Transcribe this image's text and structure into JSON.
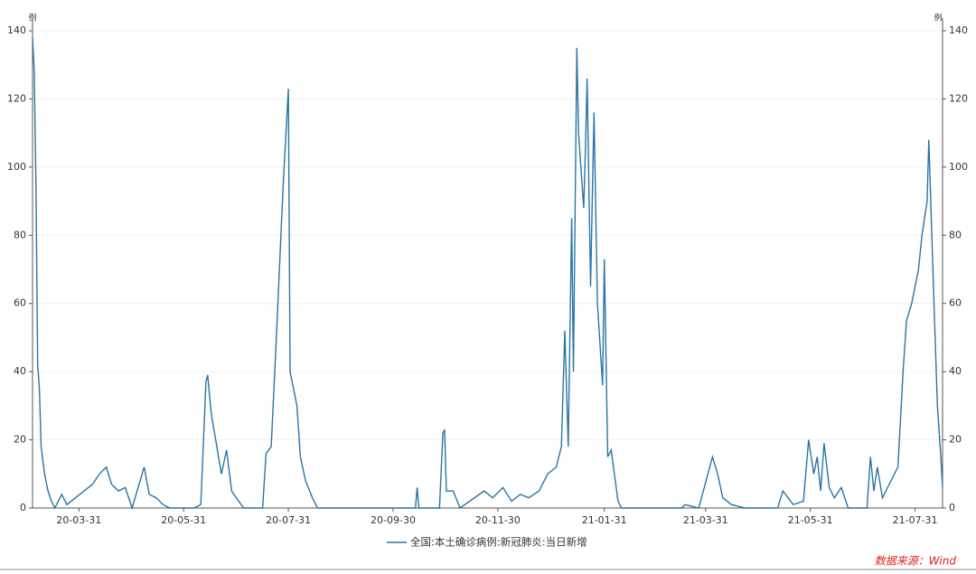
{
  "chart_data": {
    "type": "line",
    "y_unit": "例",
    "y2_unit": "例",
    "x": [
      "20-03-04",
      "20-03-05",
      "20-03-06",
      "20-03-07",
      "20-03-08",
      "20-03-09",
      "20-03-11",
      "20-03-13",
      "20-03-15",
      "20-03-17",
      "20-03-21",
      "20-03-24",
      "20-03-29",
      "20-04-03",
      "20-04-08",
      "20-04-12",
      "20-04-16",
      "20-04-19",
      "20-04-23",
      "20-04-27",
      "20-05-01",
      "20-05-08",
      "20-05-11",
      "20-05-15",
      "20-05-19",
      "20-05-23",
      "20-06-06",
      "20-06-10",
      "20-06-13",
      "20-06-14",
      "20-06-16",
      "20-06-18",
      "20-06-22",
      "20-06-25",
      "20-06-28",
      "20-07-02",
      "20-07-05",
      "20-07-16",
      "20-07-18",
      "20-07-21",
      "20-07-24",
      "20-07-28",
      "20-07-31",
      "20-08-01",
      "20-08-03",
      "20-08-05",
      "20-08-07",
      "20-08-10",
      "20-08-14",
      "20-08-17",
      "20-10-13",
      "20-10-14",
      "20-10-15",
      "20-10-27",
      "20-10-29",
      "20-10-30",
      "20-10-31",
      "20-11-04",
      "20-11-08",
      "20-11-22",
      "20-11-27",
      "20-12-03",
      "20-12-08",
      "20-12-13",
      "20-12-18",
      "20-12-24",
      "20-12-29",
      "21-01-03",
      "21-01-06",
      "21-01-08",
      "21-01-10",
      "21-01-12",
      "21-01-13",
      "21-01-15",
      "21-01-16",
      "21-01-19",
      "21-01-20",
      "21-01-21",
      "21-01-23",
      "21-01-25",
      "21-01-27",
      "21-01-30",
      "21-01-31",
      "21-02-02",
      "21-02-04",
      "21-02-08",
      "21-02-10",
      "21-03-17",
      "21-03-19",
      "21-03-27",
      "21-04-04",
      "21-04-07",
      "21-04-10",
      "21-04-15",
      "21-04-23",
      "21-05-12",
      "21-05-15",
      "21-05-18",
      "21-05-21",
      "21-05-27",
      "21-05-30",
      "21-06-02",
      "21-06-04",
      "21-06-06",
      "21-06-08",
      "21-06-11",
      "21-06-14",
      "21-06-18",
      "21-06-22",
      "21-07-03",
      "21-07-05",
      "21-07-07",
      "21-07-09",
      "21-07-12",
      "21-07-17",
      "21-07-21",
      "21-07-24",
      "21-07-26",
      "21-07-29",
      "21-08-02",
      "21-08-04",
      "21-08-07",
      "21-08-08",
      "21-08-11",
      "21-08-13",
      "21-08-15",
      "21-08-16"
    ],
    "series": [
      {
        "name": "全国:本土确诊病例:新冠肺炎:当日新增",
        "color": "#2a74a6",
        "values": [
          138,
          128,
          95,
          42,
          35,
          18,
          10,
          5,
          2,
          0,
          4,
          1,
          3,
          5,
          7,
          10,
          12,
          7,
          5,
          6,
          0,
          12,
          4,
          3,
          1,
          0,
          0,
          1,
          37,
          39,
          28,
          22,
          10,
          17,
          5,
          2,
          0,
          0,
          16,
          18,
          50,
          95,
          123,
          40,
          35,
          30,
          15,
          8,
          3,
          0,
          0,
          6,
          0,
          0,
          22,
          23,
          5,
          5,
          0,
          5,
          3,
          6,
          2,
          4,
          3,
          5,
          10,
          12,
          18,
          52,
          18,
          85,
          40,
          135,
          110,
          88,
          105,
          126,
          65,
          116,
          60,
          36,
          73,
          15,
          17,
          2,
          0,
          0,
          1,
          0,
          15,
          10,
          3,
          1,
          0,
          0,
          5,
          3,
          1,
          2,
          20,
          10,
          15,
          5,
          19,
          6,
          3,
          6,
          0,
          0,
          15,
          5,
          12,
          3,
          8,
          12,
          40,
          55,
          60,
          70,
          80,
          90,
          108,
          60,
          30,
          15,
          6
        ]
      }
    ],
    "xlim": [
      "20-03-04",
      "21-08-16"
    ],
    "xticks": [
      "20-03-31",
      "20-05-31",
      "20-07-31",
      "20-09-30",
      "20-11-30",
      "21-01-31",
      "21-03-31",
      "21-05-31",
      "21-07-31"
    ],
    "ylim": [
      0,
      140
    ],
    "yticks": [
      0,
      20,
      40,
      60,
      80,
      100,
      120,
      140
    ],
    "y2lim": [
      0,
      140
    ],
    "y2ticks": [
      0,
      20,
      40,
      60,
      80,
      100,
      120,
      140
    ],
    "grid": true,
    "legend": "bottom",
    "source": "数据来源：Wind"
  }
}
